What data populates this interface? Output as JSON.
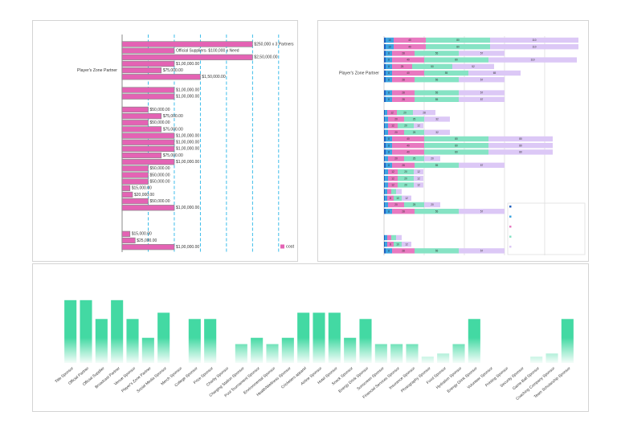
{
  "chart_data": [
    {
      "type": "bar",
      "orientation": "horizontal",
      "categories": [
        null,
        null,
        null,
        null,
        "Player's Zone Partner",
        null,
        null,
        null,
        null,
        null,
        null,
        null,
        null,
        null,
        null,
        null,
        null,
        null,
        null,
        null,
        null,
        null,
        null,
        null,
        null,
        null,
        null,
        null,
        null,
        null,
        null,
        null
      ],
      "series": [
        {
          "name": "cost",
          "color": "#e463b4",
          "values": [
            250000,
            100000,
            250000,
            100000,
            75000,
            150000,
            null,
            100000,
            100000,
            null,
            50000,
            75000,
            50000,
            75000,
            100000,
            100000,
            100000,
            75000,
            100000,
            50000,
            50000,
            50000,
            15000,
            20000,
            50000,
            100000,
            null,
            null,
            null,
            15000,
            25000,
            100000
          ],
          "value_labels": [
            "$250,000 x 3 Partners",
            "Official Suppliers- $100,000 x Need",
            "$2,50,000.00",
            "$1,00,000.00",
            "$75,000.00",
            "$1,50,000.00",
            null,
            "$1,00,000.00",
            "$1,00,000.00",
            null,
            "$50,000.00",
            "$75,000.00",
            "$50,000.00",
            "$75,000.00",
            "$1,00,000.00",
            "$1,00,000.00",
            "$1,00,000.00",
            "$75,000.00",
            "$1,00,000.00",
            "$50,000.00",
            "$50,000.00",
            "$50,000.00",
            "$15,000.00",
            "$20,000.00",
            "$50,000.00",
            "$1,00,000.00",
            null,
            null,
            null,
            "$15,000.00",
            "$25,000.00",
            "$1,00,000.00"
          ]
        }
      ],
      "xlim": [
        0,
        328000
      ],
      "xticks": [
        50000,
        100000,
        150000,
        200000,
        250000,
        300000
      ],
      "grid": true,
      "grid_color": "#29b6e8",
      "legend": "lower right"
    },
    {
      "type": "stacked_bar",
      "orientation": "horizontal",
      "categories": [
        null,
        null,
        null,
        null,
        null,
        "Player's Zone Partner",
        null,
        null,
        null,
        null,
        null,
        null,
        null,
        null,
        null,
        null,
        null,
        null,
        null,
        null,
        null,
        null,
        null,
        null,
        null,
        null,
        null,
        null,
        null,
        null,
        null,
        null,
        null
      ],
      "series": [
        {
          "color": "#1f5fbf",
          "values": [
            2,
            2,
            2,
            2,
            2,
            2,
            2,
            null,
            2,
            2,
            null,
            1,
            1,
            1,
            1,
            2,
            2,
            2,
            1,
            2,
            1,
            1,
            1,
            1,
            1,
            1,
            2,
            null,
            null,
            null,
            1,
            1,
            2
          ]
        },
        {
          "color": "#3da5e0",
          "values": [
            10,
            10,
            8,
            8,
            8,
            8,
            8,
            null,
            8,
            8,
            null,
            3,
            4,
            4,
            4,
            8,
            8,
            8,
            4,
            8,
            4,
            4,
            4,
            3,
            3,
            4,
            8,
            null,
            null,
            null,
            3,
            3,
            8
          ]
        },
        {
          "color": "#e879c0",
          "values": [
            40,
            40,
            28,
            40,
            25,
            40,
            28,
            null,
            28,
            28,
            null,
            12,
            20,
            12,
            20,
            40,
            40,
            40,
            20,
            28,
            12,
            12,
            12,
            5,
            8,
            20,
            28,
            null,
            null,
            null,
            5,
            8,
            28
          ]
        },
        {
          "color": "#86e3c4",
          "values": [
            80,
            80,
            55,
            80,
            50,
            55,
            55,
            null,
            55,
            55,
            null,
            20,
            25,
            20,
            25,
            80,
            80,
            80,
            25,
            55,
            20,
            20,
            20,
            6,
            10,
            25,
            55,
            null,
            null,
            null,
            6,
            10,
            55
          ]
        },
        {
          "color": "#dcc8f6",
          "values": [
            110,
            110,
            57,
            110,
            52,
            65,
            57,
            null,
            57,
            57,
            null,
            28,
            32,
            12,
            32,
            80,
            80,
            80,
            20,
            57,
            12,
            12,
            12,
            7,
            12,
            20,
            57,
            null,
            null,
            null,
            7,
            12,
            57
          ]
        }
      ],
      "xlim": [
        0,
        250
      ],
      "xticks": [
        50,
        100,
        150,
        200
      ],
      "grid": true,
      "grid_color": "#d8d8d8",
      "legend": "lower right"
    },
    {
      "type": "bar",
      "orientation": "vertical",
      "categories": [
        "Title Sponsor",
        "Official Partner",
        "Official Supplier",
        "Broadcast Partner",
        "Venue Sponsor",
        "Player's Zone Partner",
        "Social Media Sponsor",
        "Merch Sponsor",
        "College Sponsor",
        "Prize Sponsor",
        "Charity Sponsor",
        "Charging Station Sponsor",
        "Pool Tournament Sponsor",
        "Environmental Sponsor",
        "Health/Wellness Sponsor",
        "Cricketers apparel",
        "Airline Sponsor",
        "Hotel Sponsor",
        "Snack Sponsor",
        "Energy Drink Sponsor",
        "Sunscreen Sponsor",
        "Financial Services Sponsor",
        "Insurance Sponsor",
        "Photography Sponsor",
        "Food Sponsor",
        "Hydration Sponsor",
        "Energy Drink Sponsor",
        "Volunteer Sponsor",
        "Printing Sponsor",
        "Security Sponsor",
        "Game Ball Sponsor",
        "Coaching Company Sponsor",
        "Team Scholarship Sponsor"
      ],
      "values": [
        10,
        10,
        7,
        10,
        7,
        4,
        8,
        0,
        7,
        7,
        0,
        3,
        4,
        3,
        4,
        8,
        8,
        8,
        4,
        7,
        3,
        3,
        3,
        1,
        1.5,
        3,
        7,
        0,
        0,
        0,
        1,
        1.5,
        7
      ],
      "color": "#43d9a3",
      "ylim": [
        0,
        11
      ]
    }
  ]
}
